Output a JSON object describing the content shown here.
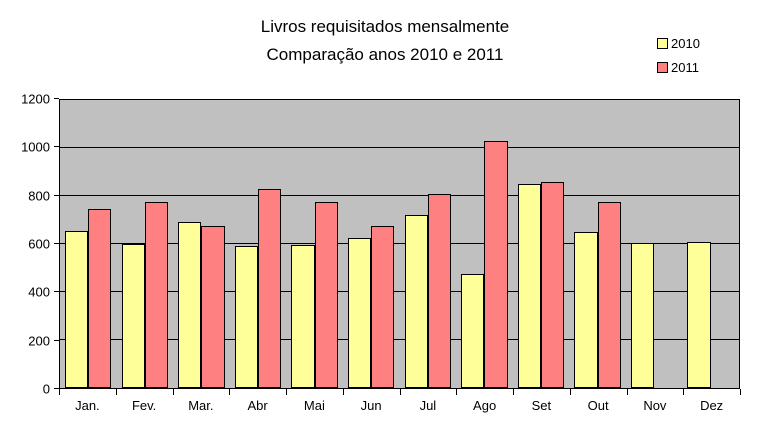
{
  "title": {
    "line1": "Livros requisitados mensalmente",
    "line2": "Comparação anos 2010 e 2011"
  },
  "legend": {
    "items": [
      {
        "label": "2010",
        "color": "#FFFF99"
      },
      {
        "label": "2011",
        "color": "#FF8080"
      }
    ]
  },
  "colors": {
    "plot_background": "#C0C0C0",
    "gridline": "#000000",
    "bar_border": "#000000",
    "series_2010": "#FFFF99",
    "series_2011": "#FF8080",
    "text": "#000000",
    "page_background": "#FFFFFF"
  },
  "chart_data": {
    "type": "bar",
    "title": "Livros requisitados mensalmente — Comparação anos 2010 e 2011",
    "categories": [
      "Jan.",
      "Fev.",
      "Mar.",
      "Abr",
      "Mai",
      "Jun",
      "Jul",
      "Ago",
      "Set",
      "Out",
      "Nov",
      "Dez"
    ],
    "series": [
      {
        "name": "2010",
        "color": "#FFFF99",
        "values": [
          655,
          600,
          690,
          590,
          595,
          625,
          720,
          475,
          850,
          650,
          605,
          610
        ]
      },
      {
        "name": "2011",
        "color": "#FF8080",
        "values": [
          745,
          775,
          675,
          830,
          775,
          675,
          810,
          1030,
          860,
          775,
          null,
          null
        ]
      }
    ],
    "xlabel": "",
    "ylabel": "",
    "ylim": [
      0,
      1200
    ],
    "yticks": [
      0,
      200,
      400,
      600,
      800,
      1000,
      1200
    ],
    "grid": true,
    "legend_position": "top-right",
    "plot_area_background": "#C0C0C0"
  }
}
